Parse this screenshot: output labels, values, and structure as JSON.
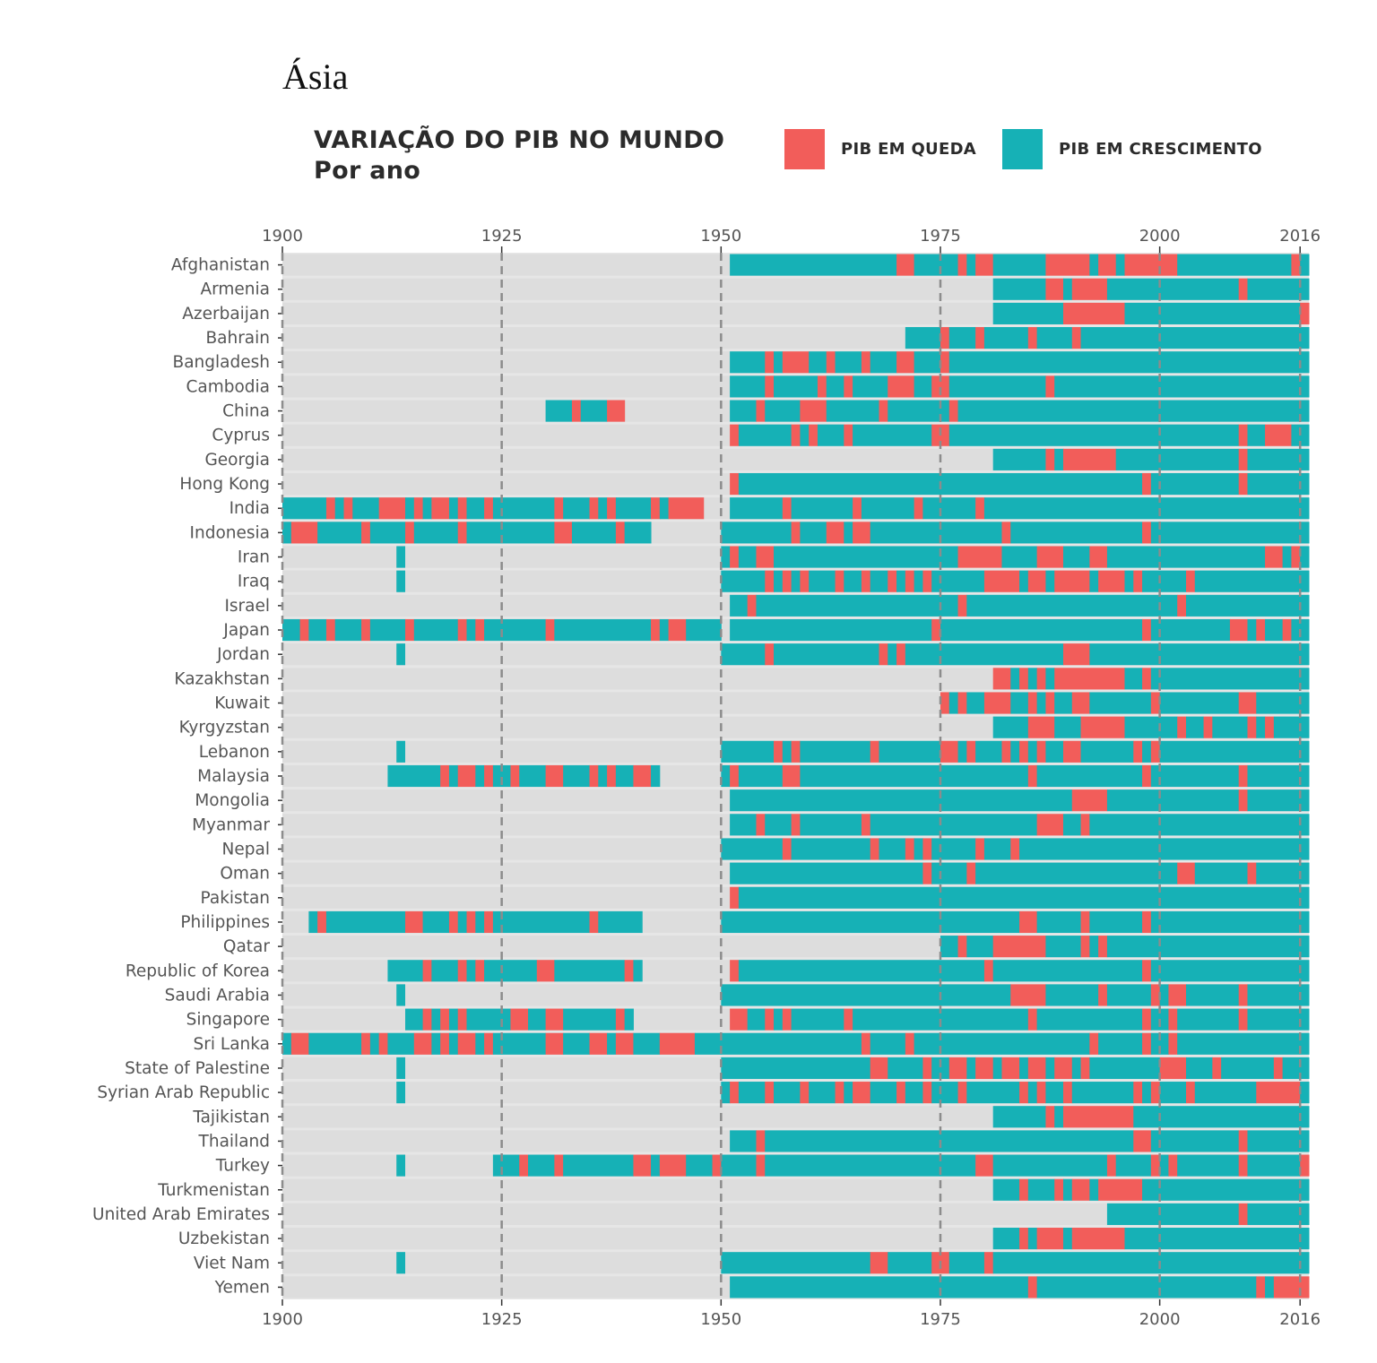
{
  "region_title": "Ásia",
  "chart_data": {
    "type": "bar",
    "title": "VARIAÇÃO DO PIB NO MUNDO",
    "subtitle": "Por ano",
    "x_ticks": [
      1900,
      1925,
      1950,
      1975,
      2000,
      2016
    ],
    "xlim": [
      1900,
      2017
    ],
    "legend": [
      {
        "key": "queda",
        "label": "PIB EM QUEDA",
        "color": "#f25d5a"
      },
      {
        "key": "crescimento",
        "label": "PIB EM CRESCIMENTO",
        "color": "#16b1b6"
      }
    ],
    "colors": {
      "queda": "#f25d5a",
      "crescimento": "#16b1b6",
      "no_data": "#e6e6e6",
      "no_data_dark": "#dddddd"
    },
    "countries": [
      {
        "name": "Afghanistan",
        "start": 1951,
        "down": [
          1970,
          1971,
          1977,
          1979,
          1980,
          1987,
          1988,
          1989,
          1990,
          1991,
          1993,
          1994,
          1996,
          1997,
          1998,
          1999,
          2000,
          2001,
          2015
        ]
      },
      {
        "name": "Armenia",
        "start": 1981,
        "down": [
          1987,
          1988,
          1990,
          1991,
          1992,
          1993,
          2009
        ]
      },
      {
        "name": "Azerbaijan",
        "start": 1981,
        "down": [
          1989,
          1990,
          1991,
          1992,
          1993,
          1994,
          1995,
          2016
        ]
      },
      {
        "name": "Bahrain",
        "start": 1971,
        "down": [
          1975,
          1979,
          1985,
          1990
        ]
      },
      {
        "name": "Bangladesh",
        "start": 1951,
        "down": [
          1955,
          1957,
          1958,
          1959,
          1962,
          1966,
          1970,
          1971,
          1975
        ]
      },
      {
        "name": "Cambodia",
        "start": 1951,
        "down": [
          1955,
          1961,
          1964,
          1969,
          1970,
          1971,
          1974,
          1975,
          1987
        ]
      },
      {
        "name": "China",
        "start": 1951,
        "down": [
          1954,
          1959,
          1960,
          1961,
          1968,
          1976
        ]
      },
      {
        "name": "Cyprus",
        "start": 1951,
        "down": [
          1951,
          1958,
          1960,
          1964,
          1974,
          1975,
          2009,
          2012,
          2013,
          2014
        ]
      },
      {
        "name": "Georgia",
        "start": 1981,
        "down": [
          1987,
          1989,
          1990,
          1991,
          1992,
          1993,
          1994,
          2009
        ]
      },
      {
        "name": "Hong Kong",
        "start": 1951,
        "down": [
          1951,
          1998,
          2009
        ]
      },
      {
        "name": "India",
        "start": 1951,
        "down": [
          1957,
          1965,
          1972,
          1979
        ]
      },
      {
        "name": "Indonesia",
        "start": 1950,
        "down": [
          1958,
          1962,
          1963,
          1965,
          1966,
          1982,
          1998
        ]
      },
      {
        "name": "Iran",
        "start": 1950,
        "down": [
          1951,
          1954,
          1955,
          1977,
          1978,
          1979,
          1980,
          1981,
          1986,
          1987,
          1988,
          1992,
          1993,
          2012,
          2013,
          2015
        ]
      },
      {
        "name": "Iraq",
        "start": 1950,
        "down": [
          1955,
          1957,
          1959,
          1963,
          1966,
          1969,
          1971,
          1973,
          1980,
          1981,
          1982,
          1983,
          1985,
          1986,
          1988,
          1989,
          1990,
          1991,
          1993,
          1994,
          1995,
          1997,
          2003
        ]
      },
      {
        "name": "Israel",
        "start": 1951,
        "down": [
          1953,
          1977,
          2002
        ]
      },
      {
        "name": "Japan",
        "start": 1951,
        "down": [
          1974,
          1998,
          2008,
          2009,
          2011,
          2014
        ]
      },
      {
        "name": "Jordan",
        "start": 1950,
        "down": [
          1955,
          1968,
          1970,
          1989,
          1990,
          1991
        ]
      },
      {
        "name": "Kazakhstan",
        "start": 1981,
        "down": [
          1981,
          1982,
          1984,
          1986,
          1988,
          1989,
          1990,
          1991,
          1992,
          1993,
          1994,
          1995,
          1998
        ]
      },
      {
        "name": "Kuwait",
        "start": 1975,
        "down": [
          1975,
          1977,
          1980,
          1981,
          1982,
          1985,
          1987,
          1990,
          1991,
          1999,
          2009,
          2010
        ]
      },
      {
        "name": "Kyrgyzstan",
        "start": 1981,
        "down": [
          1985,
          1986,
          1987,
          1991,
          1992,
          1993,
          1994,
          1995,
          2002,
          2005,
          2010,
          2012
        ]
      },
      {
        "name": "Lebanon",
        "start": 1950,
        "down": [
          1956,
          1958,
          1967,
          1975,
          1976,
          1978,
          1982,
          1984,
          1986,
          1989,
          1990,
          1997,
          1999
        ]
      },
      {
        "name": "Malaysia",
        "start": 1950,
        "down": [
          1951,
          1957,
          1958,
          1985,
          1998,
          2009
        ]
      },
      {
        "name": "Mongolia",
        "start": 1951,
        "down": [
          1990,
          1991,
          1992,
          1993,
          2009
        ]
      },
      {
        "name": "Myanmar",
        "start": 1951,
        "down": [
          1954,
          1958,
          1966,
          1986,
          1987,
          1988,
          1991
        ]
      },
      {
        "name": "Nepal",
        "start": 1950,
        "down": [
          1957,
          1967,
          1971,
          1973,
          1979,
          1983
        ]
      },
      {
        "name": "Oman",
        "start": 1951,
        "down": [
          1973,
          1978,
          2002,
          2003,
          2010
        ]
      },
      {
        "name": "Pakistan",
        "start": 1951,
        "down": [
          1951
        ]
      },
      {
        "name": "Philippines",
        "start": 1950,
        "down": [
          1984,
          1985,
          1991,
          1998
        ]
      },
      {
        "name": "Qatar",
        "start": 1975,
        "down": [
          1977,
          1981,
          1982,
          1983,
          1984,
          1985,
          1986,
          1991,
          1993
        ]
      },
      {
        "name": "Republic of Korea",
        "start": 1951,
        "down": [
          1951,
          1980,
          1998
        ]
      },
      {
        "name": "Saudi Arabia",
        "start": 1950,
        "down": [
          1983,
          1984,
          1985,
          1986,
          1993,
          1999,
          2001,
          2002,
          2009
        ]
      },
      {
        "name": "Singapore",
        "start": 1951,
        "down": [
          1951,
          1952,
          1955,
          1957,
          1964,
          1985,
          1998,
          2001,
          2009
        ]
      },
      {
        "name": "Sri Lanka",
        "start": 1950,
        "down": [
          1966,
          1971,
          1992,
          1998,
          2001
        ]
      },
      {
        "name": "State of Palestine",
        "start": 1950,
        "down": [
          1967,
          1968,
          1973,
          1976,
          1977,
          1979,
          1980,
          1982,
          1983,
          1985,
          1986,
          1988,
          1989,
          1991,
          2000,
          2001,
          2002,
          2006,
          2013
        ]
      },
      {
        "name": "Syrian Arab Republic",
        "start": 1950,
        "down": [
          1951,
          1955,
          1959,
          1963,
          1965,
          1966,
          1970,
          1973,
          1977,
          1984,
          1986,
          1989,
          1997,
          1999,
          2003,
          2011,
          2012,
          2013,
          2014,
          2015
        ]
      },
      {
        "name": "Tajikistan",
        "start": 1981,
        "down": [
          1987,
          1989,
          1990,
          1991,
          1992,
          1993,
          1994,
          1995,
          1996
        ]
      },
      {
        "name": "Thailand",
        "start": 1951,
        "down": [
          1954,
          1997,
          1998,
          2009
        ]
      },
      {
        "name": "Turkey",
        "start": 1950,
        "down": [
          1954,
          1979,
          1980,
          1994,
          1999,
          2001,
          2009,
          2016
        ]
      },
      {
        "name": "Turkmenistan",
        "start": 1981,
        "down": [
          1984,
          1988,
          1990,
          1991,
          1993,
          1994,
          1995,
          1996,
          1997
        ]
      },
      {
        "name": "United Arab Emirates",
        "start": 1994,
        "down": [
          2009
        ]
      },
      {
        "name": "Uzbekistan",
        "start": 1981,
        "down": [
          1984,
          1986,
          1987,
          1988,
          1990,
          1991,
          1992,
          1993,
          1994,
          1995
        ]
      },
      {
        "name": "Viet Nam",
        "start": 1950,
        "down": [
          1967,
          1968,
          1974,
          1975,
          1980
        ]
      },
      {
        "name": "Yemen",
        "start": 1951,
        "down": [
          1985,
          2011,
          2013,
          2014,
          2015,
          2016
        ]
      }
    ],
    "early_segments": {
      "China": {
        "start": 1930,
        "end": 1938,
        "down": [
          1933,
          1937,
          1938
        ]
      },
      "India": {
        "start": 1900,
        "end": 1947,
        "down": [
          1905,
          1907,
          1911,
          1912,
          1913,
          1915,
          1917,
          1918,
          1920,
          1923,
          1931,
          1935,
          1937,
          1942,
          1944,
          1945,
          1946,
          1947
        ]
      },
      "Indonesia": {
        "start": 1900,
        "end": 1941,
        "down": [
          1901,
          1902,
          1903,
          1909,
          1914,
          1920,
          1931,
          1932,
          1938
        ]
      },
      "Japan": {
        "start": 1900,
        "end": 1949,
        "down": [
          1902,
          1905,
          1909,
          1914,
          1920,
          1922,
          1930,
          1942,
          1944,
          1945
        ]
      },
      "Malaysia": {
        "start": 1912,
        "end": 1942,
        "down": [
          1918,
          1920,
          1921,
          1923,
          1926,
          1930,
          1931,
          1935,
          1937,
          1940,
          1941
        ]
      },
      "Philippines": {
        "start": 1903,
        "end": 1940,
        "down": [
          1904,
          1914,
          1915,
          1919,
          1921,
          1923,
          1935
        ]
      },
      "Republic of Korea": {
        "start": 1912,
        "end": 1940,
        "down": [
          1916,
          1920,
          1922,
          1929,
          1930,
          1939
        ]
      },
      "Singapore": {
        "start": 1914,
        "end": 1939,
        "down": [
          1916,
          1918,
          1920,
          1926,
          1927,
          1930,
          1931,
          1938
        ]
      },
      "Sri Lanka": {
        "start": 1900,
        "end": 1949,
        "down": [
          1901,
          1902,
          1909,
          1911,
          1915,
          1916,
          1918,
          1920,
          1921,
          1923,
          1930,
          1931,
          1935,
          1936,
          1938,
          1939,
          1943,
          1944,
          1945,
          1946
        ]
      },
      "Turkey": {
        "start": 1924,
        "end": 1949,
        "down": [
          1927,
          1931,
          1940,
          1941,
          1943,
          1944,
          1945,
          1949
        ]
      }
    },
    "single_1913": [
      "Iran",
      "Iraq",
      "Jordan",
      "Lebanon",
      "Saudi Arabia",
      "State of Palestine",
      "Syrian Arab Republic",
      "Turkey",
      "Viet Nam"
    ]
  }
}
